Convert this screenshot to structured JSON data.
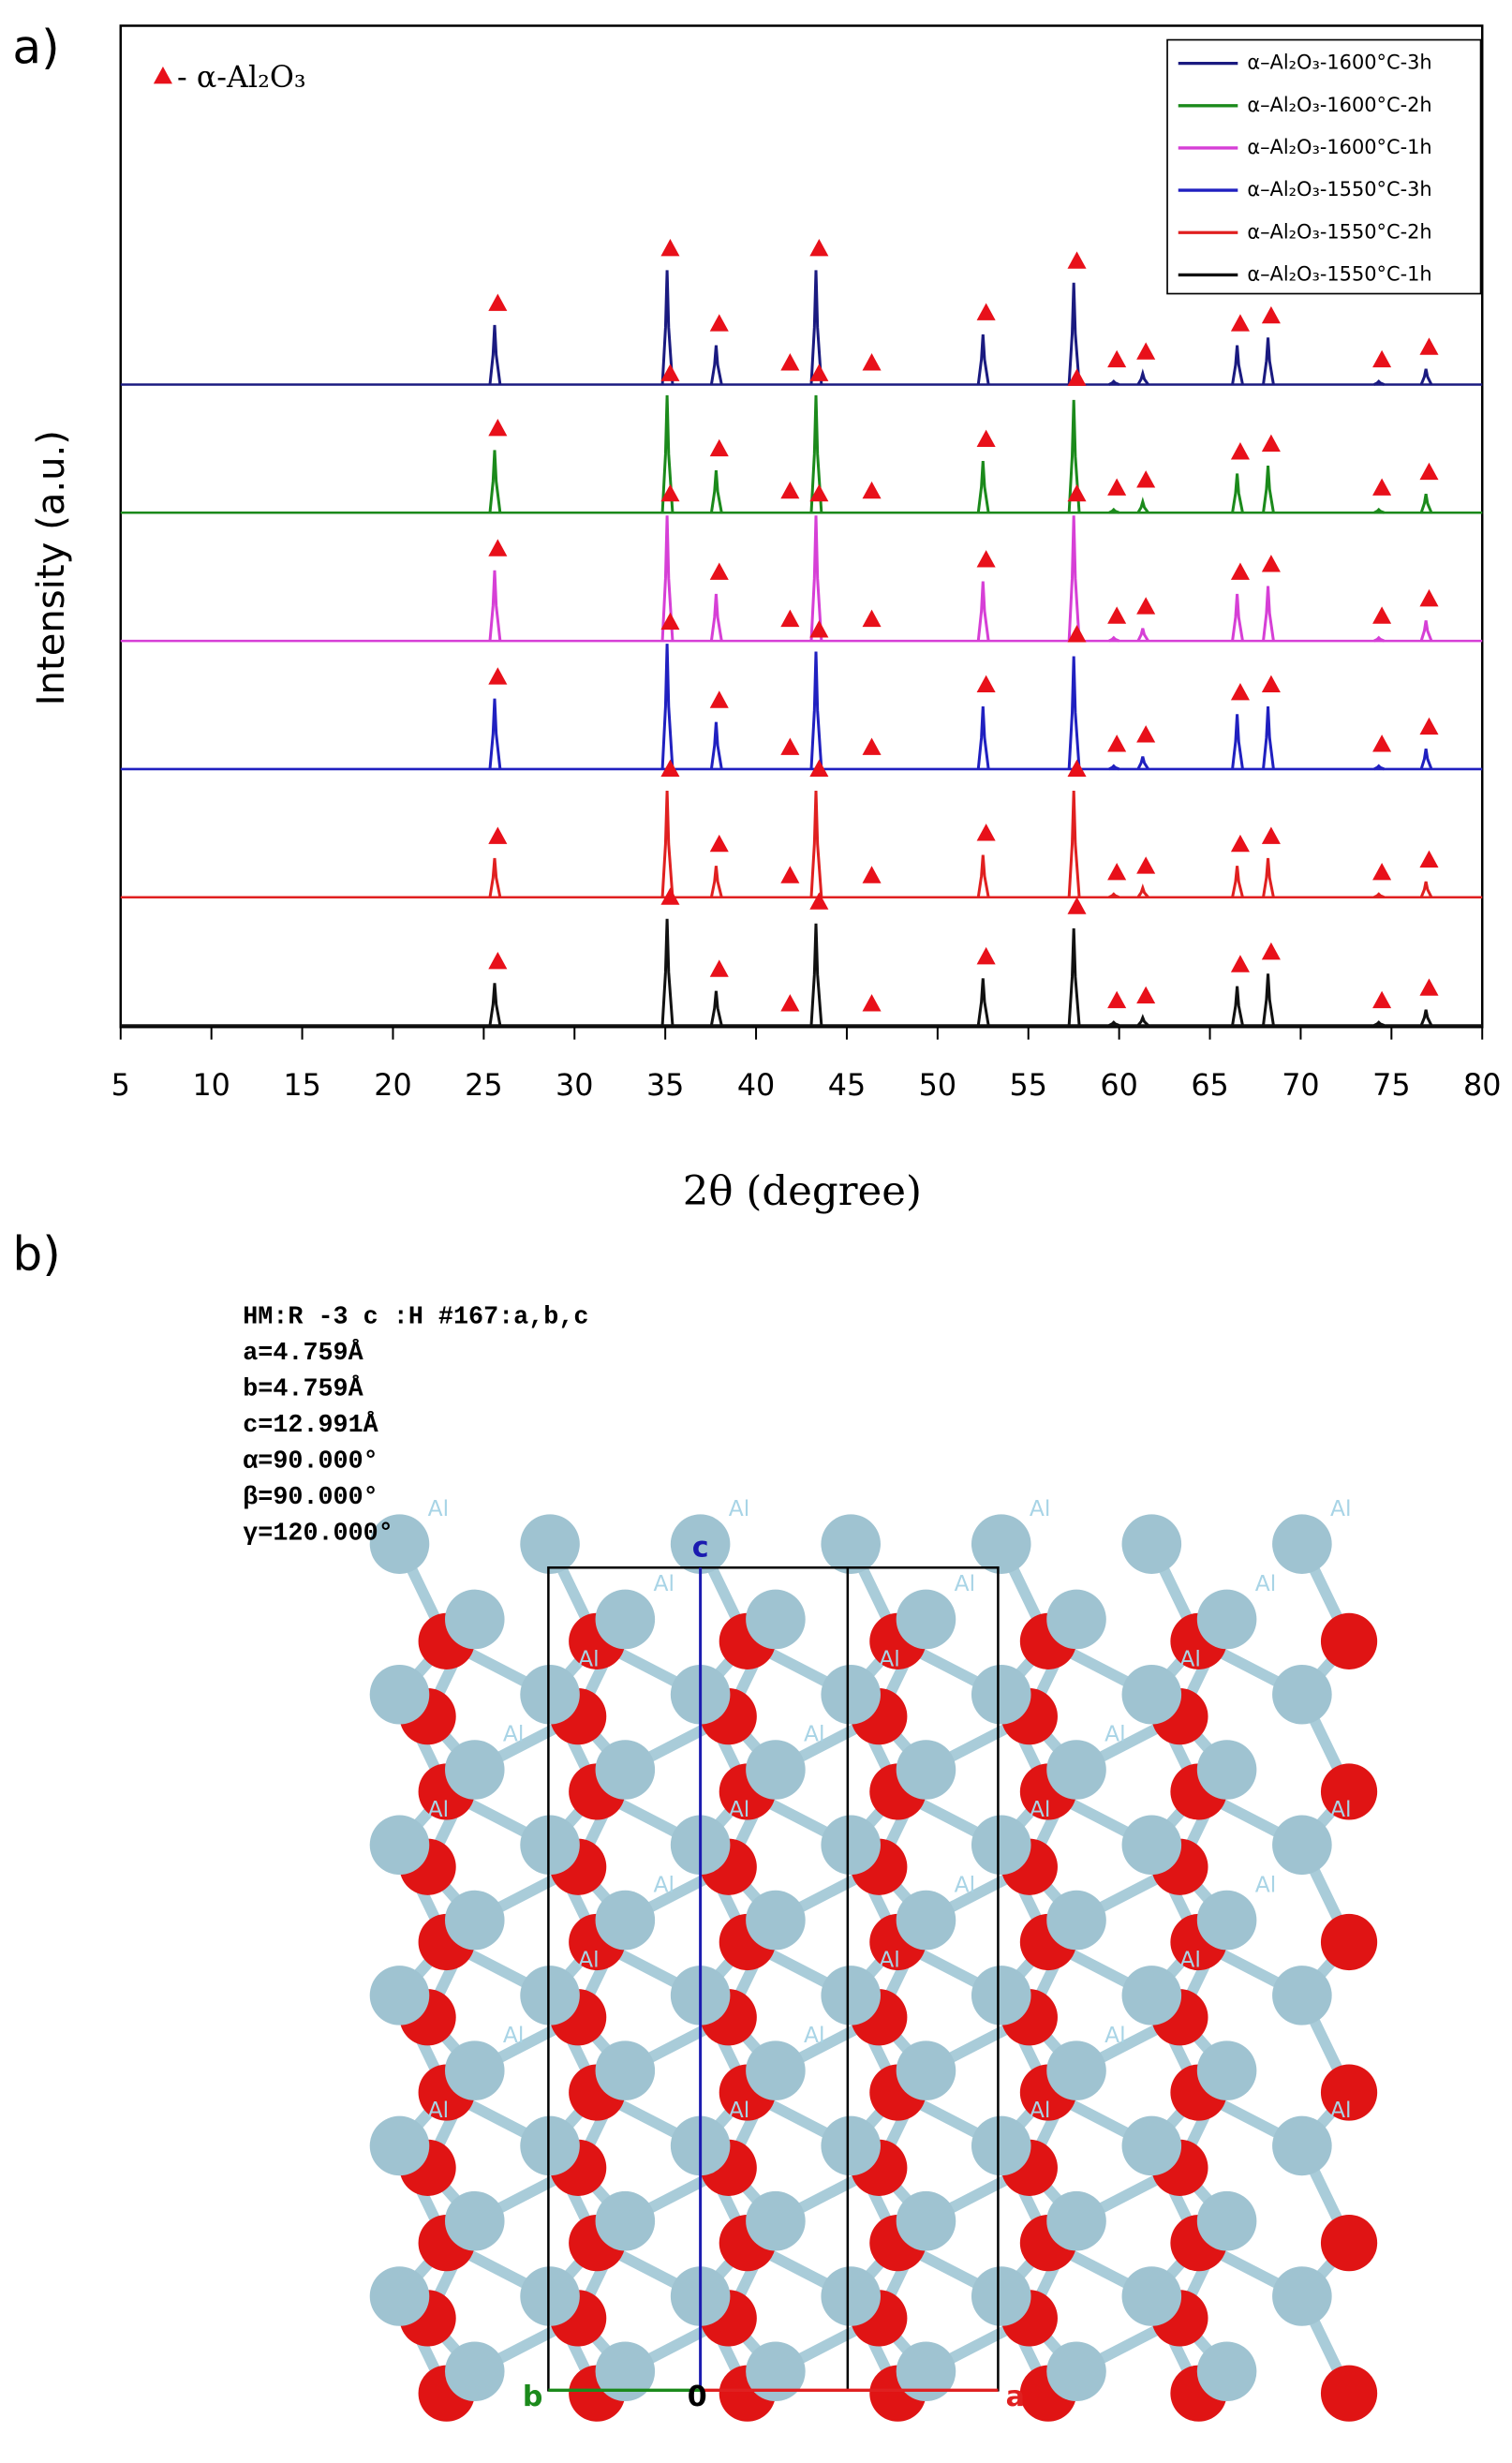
{
  "panel_labels": [
    "a)",
    "b)"
  ],
  "chart_data": {
    "type": "xrd",
    "x_label": "2θ (degree)",
    "y_label": "Intensity (a.u.)",
    "annotation": "- α-Al₂O₃",
    "marker_color": "#e8101a",
    "xlim": [
      5,
      80
    ],
    "xticks": [
      5,
      10,
      15,
      20,
      25,
      30,
      35,
      40,
      45,
      50,
      55,
      60,
      65,
      70,
      75,
      80
    ],
    "x": [
      25.6,
      35.1,
      37.8,
      43.3,
      52.5,
      57.5,
      59.7,
      61.3,
      66.5,
      68.2,
      74.3,
      76.9
    ],
    "markers": [
      25.6,
      35.1,
      37.8,
      41.7,
      43.3,
      46.2,
      52.5,
      57.5,
      59.7,
      61.3,
      66.5,
      68.2,
      74.3,
      76.9
    ],
    "series": [
      {
        "name": "α–Al₂O₃-1600°C-3h",
        "color": "#1a1a80",
        "values": [
          38,
          73,
          25,
          73,
          32,
          65,
          2,
          7,
          25,
          30,
          2,
          10
        ]
      },
      {
        "name": "α–Al₂O₃-1600°C-2h",
        "color": "#1b8a1b",
        "values": [
          40,
          75,
          27,
          75,
          33,
          72,
          2,
          7,
          25,
          30,
          2,
          12
        ]
      },
      {
        "name": "α–Al₂O₃-1600°C-1h",
        "color": "#d63fd6",
        "values": [
          45,
          80,
          30,
          80,
          38,
          80,
          2,
          8,
          30,
          35,
          2,
          13
        ]
      },
      {
        "name": "α–Al₂O₃-1550°C-3h",
        "color": "#2020c0",
        "values": [
          45,
          80,
          30,
          75,
          40,
          72,
          2,
          8,
          35,
          40,
          2,
          13
        ]
      },
      {
        "name": "α–Al₂O₃-1550°C-2h",
        "color": "#e02020",
        "values": [
          25,
          68,
          20,
          68,
          27,
          68,
          2,
          6,
          20,
          25,
          2,
          10
        ]
      },
      {
        "name": "α–Al₂O₃-1550°C-1h",
        "color": "#111111",
        "values": [
          27,
          68,
          22,
          65,
          30,
          62,
          2,
          5,
          25,
          33,
          2,
          10
        ]
      }
    ]
  },
  "structure": {
    "info": [
      "HM:R -3 c :H #167:a,b,c",
      "a=4.759Å",
      "b=4.759Å",
      "c=12.991Å",
      "α=90.000°",
      "β=90.000°",
      "γ=120.000°"
    ],
    "atom_label": "Al",
    "axis_a": "a",
    "axis_b": "b",
    "axis_c": "c",
    "origin": "0"
  }
}
